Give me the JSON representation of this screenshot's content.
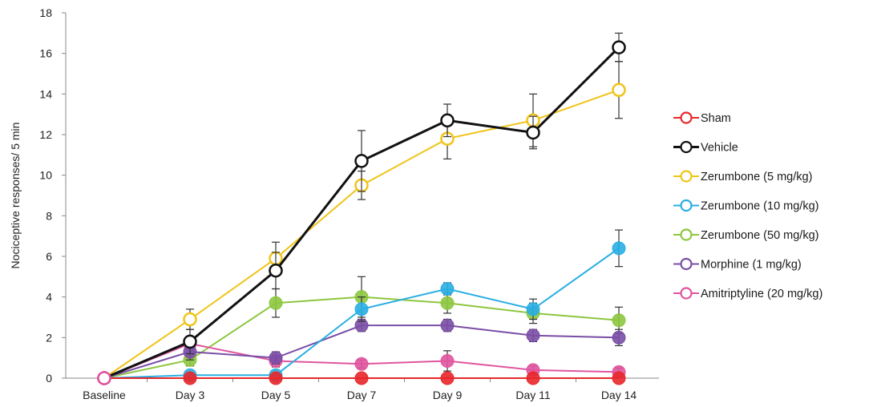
{
  "chart_data": {
    "type": "line",
    "title": "",
    "xlabel": "",
    "ylabel": "Nociceptive responses/ 5 min",
    "categories": [
      "Baseline",
      "Day 3",
      "Day 5",
      "Day 7",
      "Day 9",
      "Day 11",
      "Day 14"
    ],
    "ylim": [
      0,
      18
    ],
    "yticks": [
      0,
      2,
      4,
      6,
      8,
      10,
      12,
      14,
      16,
      18
    ],
    "grid": false,
    "legend_position": "right",
    "series": [
      {
        "name": "Sham",
        "color": "#e8272a",
        "marker": "filled",
        "values": [
          0,
          0,
          0,
          0,
          0,
          0,
          0
        ],
        "errors": [
          0,
          0,
          0,
          0,
          0,
          0,
          0
        ]
      },
      {
        "name": "Vehicle",
        "color": "#111111",
        "marker": "open",
        "values": [
          0,
          1.8,
          5.3,
          10.7,
          12.7,
          12.1,
          16.3
        ],
        "errors": [
          0,
          0.6,
          0.9,
          1.5,
          0.8,
          0.8,
          0.7
        ]
      },
      {
        "name": "Zerumbone (5 mg/kg)",
        "color": "#f0c419",
        "marker": "open",
        "values": [
          0,
          2.9,
          5.9,
          9.5,
          11.8,
          12.7,
          14.2
        ],
        "errors": [
          0,
          0.5,
          0.8,
          0.7,
          1.0,
          1.3,
          1.4
        ]
      },
      {
        "name": "Zerumbone (10 mg/kg)",
        "color": "#29aee3",
        "marker": "filled",
        "values": [
          0,
          0.15,
          0.15,
          3.4,
          4.4,
          3.4,
          6.4
        ],
        "errors": [
          0,
          0,
          0,
          0.6,
          0.3,
          0.5,
          0.9
        ]
      },
      {
        "name": "Zerumbone (50 mg/kg)",
        "color": "#8dc63f",
        "marker": "filled",
        "values": [
          0,
          0.9,
          3.7,
          4.0,
          3.7,
          3.2,
          2.85
        ],
        "errors": [
          0,
          0.3,
          0.7,
          1.0,
          0.5,
          0.5,
          0.65
        ]
      },
      {
        "name": "Morphine (1 mg/kg)",
        "color": "#7a4ea6",
        "marker": "filled",
        "values": [
          0,
          1.3,
          1.0,
          2.6,
          2.6,
          2.1,
          2.0
        ],
        "errors": [
          0,
          0.4,
          0.3,
          0.3,
          0.3,
          0.3,
          0.4
        ]
      },
      {
        "name": "Amitriptyline (20 mg/kg)",
        "color": "#e0559f",
        "marker": "filled",
        "values": [
          0,
          1.7,
          0.85,
          0.7,
          0.85,
          0.4,
          0.3
        ],
        "errors": [
          0,
          0.3,
          0.3,
          0.2,
          0.5,
          0.2,
          0.2
        ]
      }
    ]
  }
}
